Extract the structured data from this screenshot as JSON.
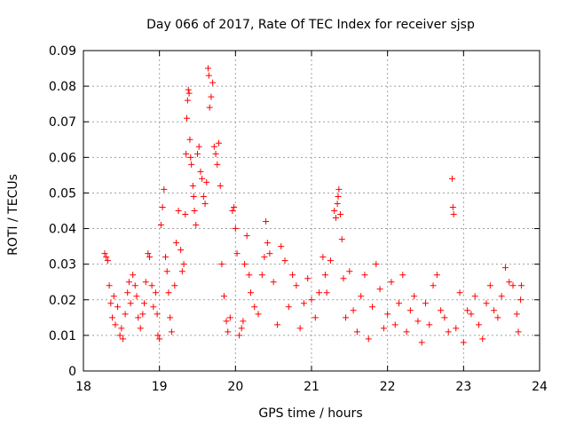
{
  "chart_data": {
    "type": "scatter",
    "title": "Day 066 of 2017, Rate Of TEC Index for receiver sjsp",
    "xlabel": "GPS time / hours",
    "ylabel": "ROTI / TECUs",
    "xlim": [
      18,
      24
    ],
    "ylim": [
      0,
      0.09
    ],
    "x_ticks": [
      18,
      19,
      20,
      21,
      22,
      23,
      24
    ],
    "x_tick_labels": [
      "18",
      "19",
      "20",
      "21",
      "22",
      "23",
      "24"
    ],
    "y_ticks": [
      0,
      0.01,
      0.02,
      0.03,
      0.04,
      0.05,
      0.06,
      0.07,
      0.08,
      0.09
    ],
    "y_tick_labels": [
      "0",
      "0.01",
      "0.02",
      "0.03",
      "0.04",
      "0.05",
      "0.06",
      "0.07",
      "0.08",
      "0.09"
    ],
    "grid": true,
    "marker": "+",
    "marker_color": "#ff0000",
    "series": [
      {
        "name": "ROTI",
        "points": [
          [
            18.28,
            0.033
          ],
          [
            18.3,
            0.032
          ],
          [
            18.32,
            0.031
          ],
          [
            18.34,
            0.024
          ],
          [
            18.36,
            0.019
          ],
          [
            18.38,
            0.015
          ],
          [
            18.4,
            0.021
          ],
          [
            18.42,
            0.013
          ],
          [
            18.45,
            0.018
          ],
          [
            18.48,
            0.01
          ],
          [
            18.5,
            0.012
          ],
          [
            18.52,
            0.009
          ],
          [
            18.55,
            0.016
          ],
          [
            18.58,
            0.022
          ],
          [
            18.6,
            0.025
          ],
          [
            18.62,
            0.019
          ],
          [
            18.65,
            0.027
          ],
          [
            18.68,
            0.024
          ],
          [
            18.7,
            0.021
          ],
          [
            18.72,
            0.015
          ],
          [
            18.75,
            0.012
          ],
          [
            18.78,
            0.016
          ],
          [
            18.8,
            0.019
          ],
          [
            18.82,
            0.025
          ],
          [
            18.85,
            0.033
          ],
          [
            18.87,
            0.032
          ],
          [
            18.9,
            0.024
          ],
          [
            18.92,
            0.018
          ],
          [
            18.95,
            0.022
          ],
          [
            18.97,
            0.016
          ],
          [
            18.98,
            0.01
          ],
          [
            19.0,
            0.009
          ],
          [
            19.02,
            0.041
          ],
          [
            19.04,
            0.046
          ],
          [
            19.06,
            0.051
          ],
          [
            19.08,
            0.032
          ],
          [
            19.1,
            0.028
          ],
          [
            19.12,
            0.022
          ],
          [
            19.14,
            0.015
          ],
          [
            19.16,
            0.011
          ],
          [
            19.2,
            0.024
          ],
          [
            19.22,
            0.036
          ],
          [
            19.25,
            0.045
          ],
          [
            19.28,
            0.034
          ],
          [
            19.3,
            0.028
          ],
          [
            19.32,
            0.03
          ],
          [
            19.34,
            0.044
          ],
          [
            19.35,
            0.061
          ],
          [
            19.36,
            0.071
          ],
          [
            19.37,
            0.076
          ],
          [
            19.38,
            0.079
          ],
          [
            19.39,
            0.078
          ],
          [
            19.4,
            0.065
          ],
          [
            19.41,
            0.06
          ],
          [
            19.42,
            0.058
          ],
          [
            19.44,
            0.052
          ],
          [
            19.45,
            0.049
          ],
          [
            19.46,
            0.045
          ],
          [
            19.48,
            0.041
          ],
          [
            19.5,
            0.061
          ],
          [
            19.52,
            0.063
          ],
          [
            19.54,
            0.056
          ],
          [
            19.56,
            0.054
          ],
          [
            19.58,
            0.049
          ],
          [
            19.6,
            0.047
          ],
          [
            19.62,
            0.053
          ],
          [
            19.64,
            0.085
          ],
          [
            19.65,
            0.083
          ],
          [
            19.66,
            0.074
          ],
          [
            19.68,
            0.077
          ],
          [
            19.7,
            0.081
          ],
          [
            19.72,
            0.063
          ],
          [
            19.74,
            0.061
          ],
          [
            19.76,
            0.058
          ],
          [
            19.78,
            0.064
          ],
          [
            19.8,
            0.052
          ],
          [
            19.82,
            0.03
          ],
          [
            19.85,
            0.021
          ],
          [
            19.88,
            0.014
          ],
          [
            19.9,
            0.011
          ],
          [
            19.93,
            0.015
          ],
          [
            19.96,
            0.045
          ],
          [
            19.98,
            0.046
          ],
          [
            20.0,
            0.04
          ],
          [
            20.02,
            0.033
          ],
          [
            20.05,
            0.01
          ],
          [
            20.08,
            0.012
          ],
          [
            20.1,
            0.014
          ],
          [
            20.12,
            0.03
          ],
          [
            20.15,
            0.038
          ],
          [
            20.18,
            0.027
          ],
          [
            20.2,
            0.022
          ],
          [
            20.25,
            0.018
          ],
          [
            20.3,
            0.016
          ],
          [
            20.35,
            0.027
          ],
          [
            20.38,
            0.032
          ],
          [
            20.4,
            0.042
          ],
          [
            20.42,
            0.036
          ],
          [
            20.45,
            0.033
          ],
          [
            20.5,
            0.025
          ],
          [
            20.55,
            0.013
          ],
          [
            20.6,
            0.035
          ],
          [
            20.65,
            0.031
          ],
          [
            20.7,
            0.018
          ],
          [
            20.75,
            0.027
          ],
          [
            20.8,
            0.024
          ],
          [
            20.85,
            0.012
          ],
          [
            20.9,
            0.019
          ],
          [
            20.95,
            0.026
          ],
          [
            21.0,
            0.02
          ],
          [
            21.05,
            0.015
          ],
          [
            21.1,
            0.022
          ],
          [
            21.15,
            0.032
          ],
          [
            21.18,
            0.027
          ],
          [
            21.2,
            0.022
          ],
          [
            21.25,
            0.031
          ],
          [
            21.3,
            0.045
          ],
          [
            21.32,
            0.043
          ],
          [
            21.34,
            0.047
          ],
          [
            21.35,
            0.049
          ],
          [
            21.36,
            0.051
          ],
          [
            21.38,
            0.044
          ],
          [
            21.4,
            0.037
          ],
          [
            21.42,
            0.026
          ],
          [
            21.45,
            0.015
          ],
          [
            21.5,
            0.028
          ],
          [
            21.55,
            0.017
          ],
          [
            21.6,
            0.011
          ],
          [
            21.65,
            0.021
          ],
          [
            21.7,
            0.027
          ],
          [
            21.75,
            0.009
          ],
          [
            21.8,
            0.018
          ],
          [
            21.85,
            0.03
          ],
          [
            21.9,
            0.023
          ],
          [
            21.95,
            0.012
          ],
          [
            22.0,
            0.016
          ],
          [
            22.05,
            0.025
          ],
          [
            22.1,
            0.013
          ],
          [
            22.15,
            0.019
          ],
          [
            22.2,
            0.027
          ],
          [
            22.25,
            0.011
          ],
          [
            22.3,
            0.017
          ],
          [
            22.35,
            0.021
          ],
          [
            22.4,
            0.014
          ],
          [
            22.45,
            0.008
          ],
          [
            22.5,
            0.019
          ],
          [
            22.55,
            0.013
          ],
          [
            22.6,
            0.024
          ],
          [
            22.65,
            0.027
          ],
          [
            22.7,
            0.017
          ],
          [
            22.75,
            0.015
          ],
          [
            22.8,
            0.011
          ],
          [
            22.85,
            0.054
          ],
          [
            22.86,
            0.046
          ],
          [
            22.87,
            0.044
          ],
          [
            22.9,
            0.012
          ],
          [
            22.95,
            0.022
          ],
          [
            23.0,
            0.008
          ],
          [
            23.05,
            0.017
          ],
          [
            23.1,
            0.016
          ],
          [
            23.15,
            0.021
          ],
          [
            23.2,
            0.013
          ],
          [
            23.25,
            0.009
          ],
          [
            23.3,
            0.019
          ],
          [
            23.35,
            0.024
          ],
          [
            23.4,
            0.017
          ],
          [
            23.45,
            0.015
          ],
          [
            23.5,
            0.021
          ],
          [
            23.55,
            0.029
          ],
          [
            23.6,
            0.025
          ],
          [
            23.65,
            0.024
          ],
          [
            23.7,
            0.016
          ],
          [
            23.72,
            0.011
          ],
          [
            23.75,
            0.02
          ],
          [
            23.76,
            0.024
          ]
        ]
      }
    ]
  }
}
